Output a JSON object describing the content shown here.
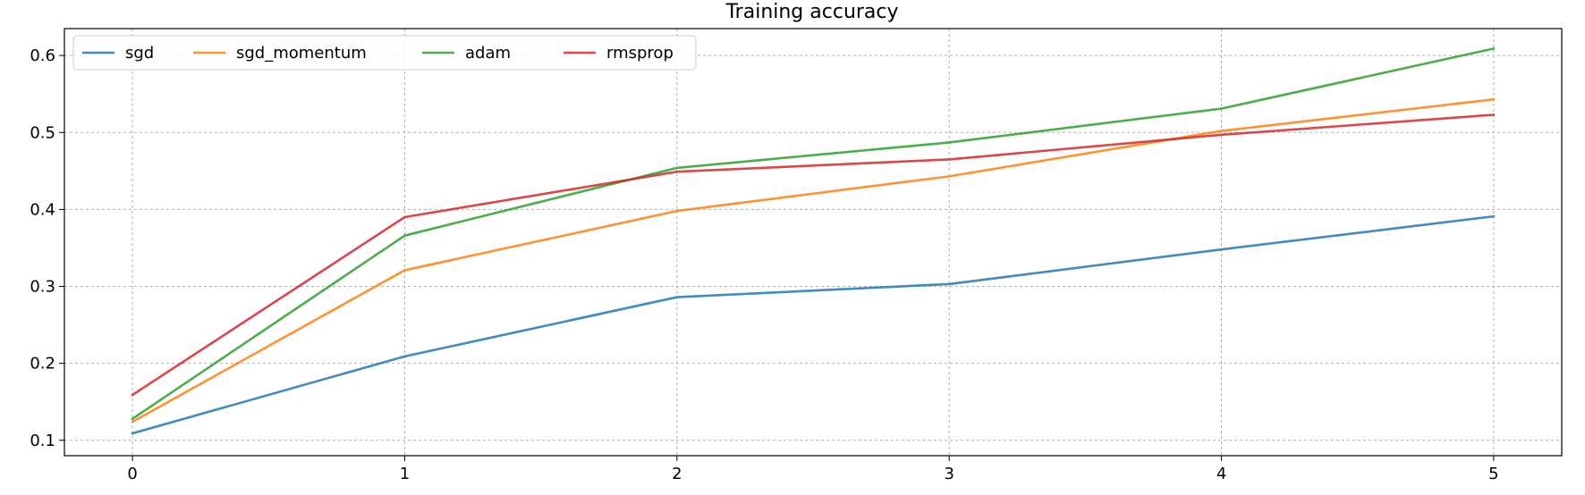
{
  "chart_data": {
    "type": "line",
    "title": "Training accuracy",
    "xlabel": "",
    "ylabel": "",
    "x": [
      0,
      1,
      2,
      3,
      4,
      5
    ],
    "xticks": [
      "0",
      "1",
      "2",
      "3",
      "4",
      "5"
    ],
    "yticks": [
      "0.1",
      "0.2",
      "0.3",
      "0.4",
      "0.5",
      "0.6"
    ],
    "xlim": [
      -0.25,
      5.25
    ],
    "ylim": [
      0.08,
      0.635
    ],
    "grid": true,
    "legend_position": "top-left",
    "series": [
      {
        "name": "sgd",
        "color": "#1f77b4",
        "values": [
          0.109,
          0.209,
          0.286,
          0.303,
          0.348,
          0.391
        ]
      },
      {
        "name": "sgd_momentum",
        "color": "#ff7f0e",
        "values": [
          0.124,
          0.321,
          0.398,
          0.443,
          0.502,
          0.543
        ]
      },
      {
        "name": "adam",
        "color": "#2ca02c",
        "values": [
          0.128,
          0.366,
          0.454,
          0.487,
          0.531,
          0.609
        ]
      },
      {
        "name": "rmsprop",
        "color": "#d62728",
        "values": [
          0.159,
          0.39,
          0.449,
          0.465,
          0.497,
          0.523
        ]
      }
    ]
  }
}
